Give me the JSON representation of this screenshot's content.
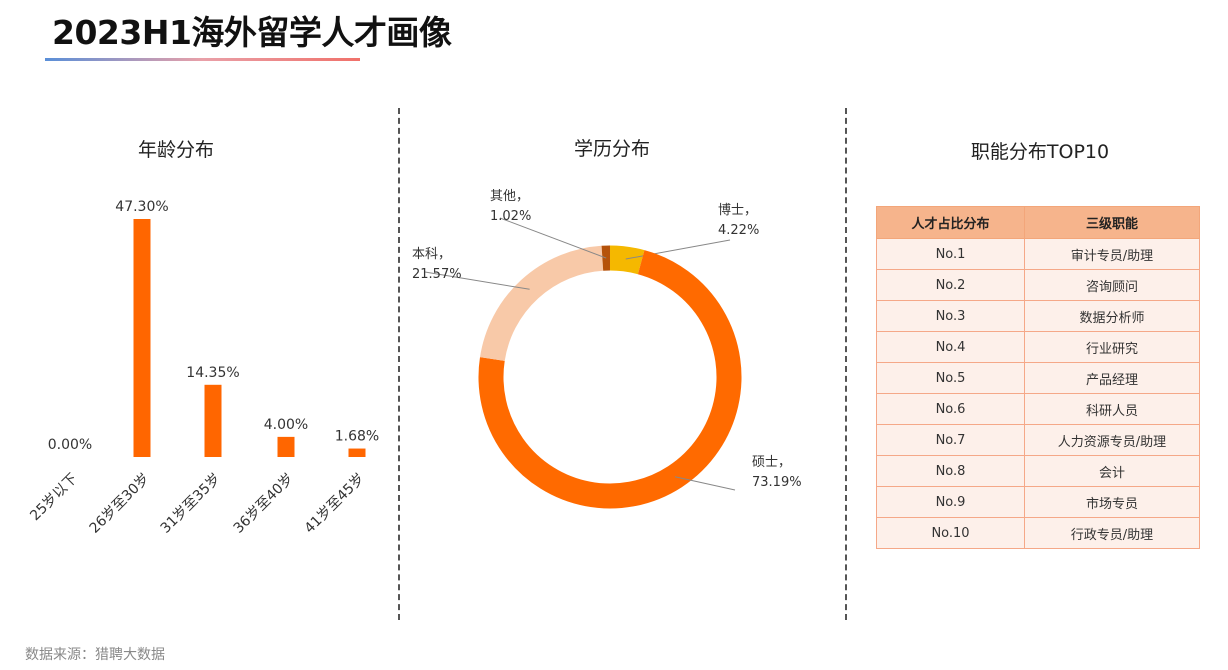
{
  "page": {
    "title": "2023H1海外留学人才画像",
    "source": "数据来源：猎聘大数据"
  },
  "colors": {
    "bar": "#ff6600",
    "master": "#ff6a00",
    "bachelor": "#f8c9a8",
    "phd": "#f5b800",
    "other": "#b5520a",
    "table_header": "#f6b48c",
    "table_cell": "#fdf0ea"
  },
  "chart_data": [
    {
      "type": "bar",
      "title": "年龄分布",
      "categories": [
        "25岁以下",
        "26岁至30岁",
        "31岁至35岁",
        "36岁至40岁",
        "41岁至45岁"
      ],
      "values": [
        0.0,
        47.3,
        14.35,
        4.0,
        1.68
      ],
      "value_labels": [
        "0.00%",
        "47.30%",
        "14.35%",
        "4.00%",
        "1.68%"
      ],
      "ylim": [
        0,
        47.3
      ],
      "grid": false
    },
    {
      "type": "pie",
      "variant": "donut",
      "title": "学历分布",
      "slices": [
        {
          "name": "博士",
          "value": 4.22,
          "label": "4.22%",
          "color": "#f5b800"
        },
        {
          "name": "硕士",
          "value": 73.19,
          "label": "73.19%",
          "color": "#ff6a00"
        },
        {
          "name": "本科",
          "value": 21.57,
          "label": "21.57%",
          "color": "#f8c9a8"
        },
        {
          "name": "其他",
          "value": 1.02,
          "label": "1.02%",
          "color": "#b5520a"
        }
      ]
    },
    {
      "type": "table",
      "title": "职能分布TOP10",
      "columns": [
        "人才占比分布",
        "三级职能"
      ],
      "rows": [
        [
          "No.1",
          "审计专员/助理"
        ],
        [
          "No.2",
          "咨询顾问"
        ],
        [
          "No.3",
          "数据分析师"
        ],
        [
          "No.4",
          "行业研究"
        ],
        [
          "No.5",
          "产品经理"
        ],
        [
          "No.6",
          "科研人员"
        ],
        [
          "No.7",
          "人力资源专员/助理"
        ],
        [
          "No.8",
          "会计"
        ],
        [
          "No.9",
          "市场专员"
        ],
        [
          "No.10",
          "行政专员/助理"
        ]
      ]
    }
  ]
}
